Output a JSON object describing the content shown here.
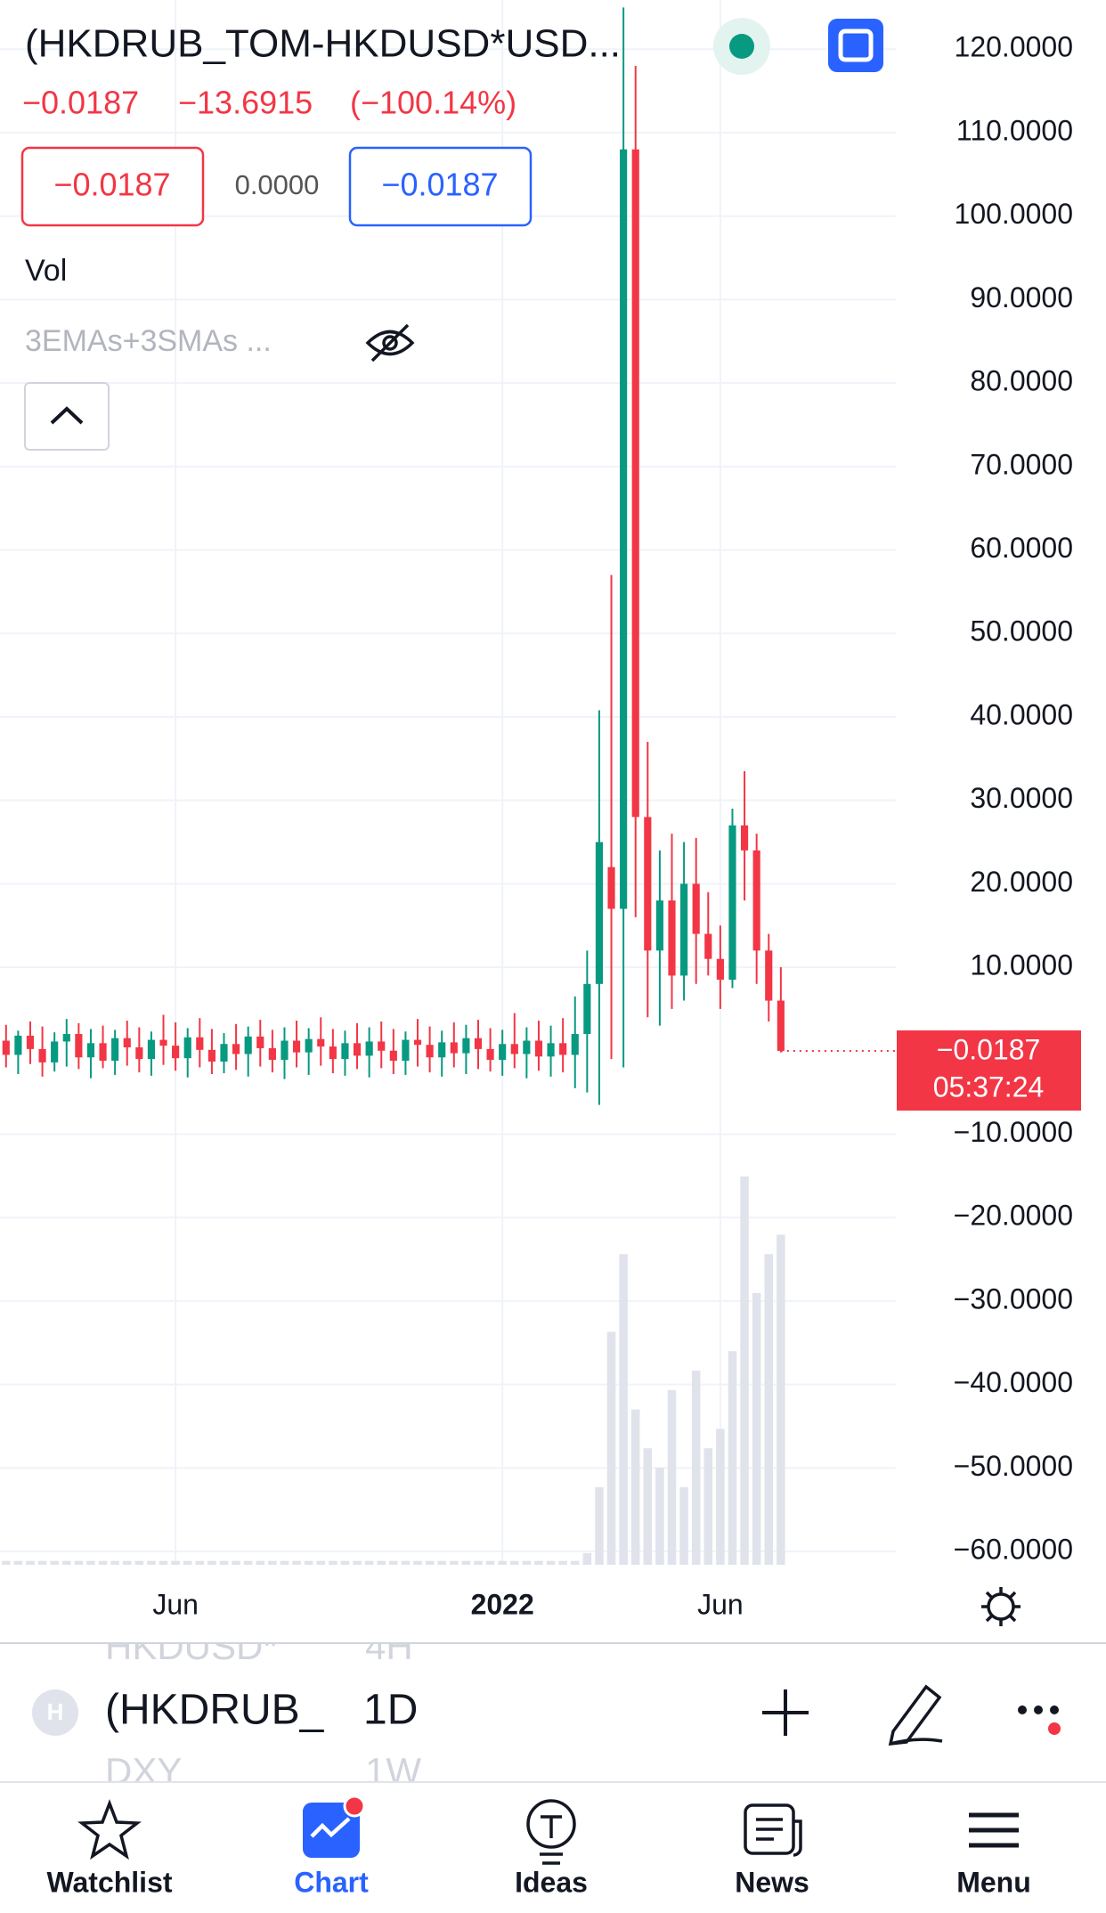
{
  "header": {
    "symbol": "(HKDRUB_TOM-HKDUSD*USD...",
    "last": "−0.0187",
    "change": "−13.6915",
    "change_percent": "(−100.14%)"
  },
  "quote": {
    "bid": "−0.0187",
    "spread": "0.0000",
    "ask": "−0.0187"
  },
  "indicators": [
    "Vol",
    "3EMAs+3SMAs ..."
  ],
  "price_label": {
    "value": "−0.0187",
    "countdown": "05:37:24"
  },
  "chart_data": {
    "type": "candlestick",
    "categories": [
      null,
      null,
      null,
      null,
      null,
      null,
      null,
      null,
      null,
      null,
      null,
      null,
      null,
      null,
      "Jun",
      null,
      null,
      null,
      null,
      null,
      null,
      null,
      null,
      null,
      null,
      null,
      null,
      null,
      null,
      null,
      null,
      null,
      null,
      null,
      null,
      null,
      null,
      null,
      null,
      null,
      null,
      "2022",
      null,
      null,
      null,
      null,
      null,
      null,
      null,
      null,
      null,
      null,
      null,
      null,
      null,
      null,
      null,
      null,
      null,
      "Jun",
      null,
      null,
      null,
      null,
      null,
      null,
      null,
      null,
      null,
      null,
      null,
      null,
      null,
      null
    ],
    "open": [
      1.2,
      -0.5,
      1.8,
      0.2,
      -1.4,
      1.1,
      2.0,
      -0.8,
      0.9,
      -1.2,
      1.5,
      0.4,
      -1.0,
      1.3,
      0.6,
      -0.9,
      1.6,
      0.1,
      -1.3,
      0.8,
      -0.4,
      1.7,
      0.3,
      -1.1,
      1.2,
      -0.2,
      1.4,
      0.5,
      -1.0,
      0.9,
      -0.6,
      1.1,
      0.0,
      -1.2,
      1.3,
      0.7,
      -0.8,
      1.0,
      -0.3,
      1.5,
      0.2,
      -1.1,
      0.8,
      -0.4,
      1.2,
      -0.7,
      0.9,
      -0.5,
      2.0,
      8.0,
      22.0,
      17.0,
      108.0,
      28.0,
      12.0,
      18.0,
      9.0,
      20.0,
      14.0,
      11.0,
      8.5,
      27.0,
      24.0,
      12.0,
      6.0,
      null,
      null,
      null,
      null,
      null,
      null,
      null,
      null,
      null
    ],
    "high": [
      3.1,
      2.4,
      3.5,
      2.9,
      2.2,
      3.8,
      3.3,
      2.6,
      3.0,
      2.5,
      3.6,
      2.8,
      2.3,
      4.3,
      3.4,
      2.7,
      3.9,
      2.6,
      2.1,
      3.2,
      2.9,
      3.7,
      2.5,
      2.8,
      3.6,
      2.7,
      4.0,
      2.6,
      2.4,
      3.3,
      2.8,
      3.5,
      2.6,
      2.3,
      3.8,
      2.9,
      2.4,
      3.4,
      3.1,
      3.7,
      2.7,
      2.5,
      4.5,
      2.8,
      3.6,
      3.0,
      3.9,
      6.5,
      12.0,
      40.8,
      57.0,
      125.0,
      118.0,
      37.0,
      24.0,
      26.0,
      25.0,
      25.5,
      19.0,
      15.0,
      29.0,
      33.5,
      26.0,
      14.0,
      10.0,
      null,
      null,
      null,
      null,
      null,
      null,
      null,
      null,
      null
    ],
    "low": [
      -2.0,
      -2.8,
      -1.6,
      -3.1,
      -2.5,
      -1.9,
      -2.2,
      -3.3,
      -2.1,
      -2.9,
      -1.8,
      -2.6,
      -3.0,
      -1.7,
      -2.4,
      -3.2,
      -2.0,
      -2.8,
      -2.7,
      -2.3,
      -3.1,
      -1.9,
      -2.6,
      -3.4,
      -2.0,
      -2.9,
      -1.8,
      -2.7,
      -3.0,
      -2.2,
      -3.2,
      -2.1,
      -2.8,
      -2.9,
      -1.9,
      -2.6,
      -3.1,
      -2.0,
      -2.8,
      -2.2,
      -2.5,
      -3.0,
      -2.1,
      -3.3,
      -2.4,
      -3.1,
      -2.6,
      -4.5,
      -5.0,
      -6.5,
      -1.0,
      -2.0,
      16.0,
      4.0,
      3.0,
      5.0,
      6.0,
      8.0,
      9.0,
      5.0,
      7.5,
      18.0,
      8.0,
      3.5,
      -0.2,
      null,
      null,
      null,
      null,
      null,
      null,
      null,
      null,
      null
    ],
    "close": [
      -0.5,
      1.8,
      0.2,
      -1.4,
      1.1,
      2.0,
      -0.8,
      0.9,
      -1.2,
      1.5,
      0.4,
      -1.0,
      1.3,
      0.6,
      -0.9,
      1.6,
      0.1,
      -1.3,
      0.8,
      -0.4,
      1.7,
      0.3,
      -1.1,
      1.2,
      -0.2,
      1.4,
      0.5,
      -1.0,
      0.9,
      -0.6,
      1.1,
      0.0,
      -1.2,
      1.3,
      0.7,
      -0.8,
      1.0,
      -0.3,
      1.5,
      0.2,
      -1.1,
      0.8,
      -0.4,
      1.2,
      -0.7,
      0.9,
      -0.5,
      2.0,
      8.0,
      25.0,
      17.0,
      108.0,
      28.0,
      12.0,
      18.0,
      9.0,
      20.0,
      14.0,
      11.0,
      8.5,
      27.0,
      24.0,
      12.0,
      6.0,
      -0.0187,
      null,
      null,
      null,
      null,
      null,
      null,
      null,
      null,
      null
    ],
    "volume": [
      1,
      1,
      1,
      1,
      1,
      1,
      1,
      1,
      1,
      1,
      1,
      1,
      1,
      1,
      1,
      1,
      1,
      1,
      1,
      1,
      1,
      1,
      1,
      1,
      1,
      1,
      1,
      1,
      1,
      1,
      1,
      1,
      1,
      1,
      1,
      1,
      1,
      1,
      1,
      1,
      1,
      1,
      1,
      1,
      1,
      1,
      1,
      1,
      3,
      20,
      60,
      80,
      40,
      30,
      25,
      45,
      20,
      50,
      30,
      35,
      55,
      100,
      70,
      80,
      85,
      null,
      null,
      null,
      null,
      null,
      null,
      null,
      null,
      null
    ],
    "up_color": "#089981",
    "down_color": "#f23645",
    "volume_color": "#e0e3eb",
    "ylim": [
      -61.6,
      125.9
    ],
    "yticks": [
      {
        "value": 120,
        "label": "120.0000"
      },
      {
        "value": 110,
        "label": "110.0000"
      },
      {
        "value": 100,
        "label": "100.0000"
      },
      {
        "value": 90,
        "label": "90.0000"
      },
      {
        "value": 80,
        "label": "80.0000"
      },
      {
        "value": 70,
        "label": "70.0000"
      },
      {
        "value": 60,
        "label": "60.0000"
      },
      {
        "value": 50,
        "label": "50.0000"
      },
      {
        "value": 40,
        "label": "40.0000"
      },
      {
        "value": 30,
        "label": "30.0000"
      },
      {
        "value": 20,
        "label": "20.0000"
      },
      {
        "value": 10,
        "label": "10.0000"
      },
      {
        "value": -10,
        "label": "−10.0000"
      },
      {
        "value": -20,
        "label": "−20.0000"
      },
      {
        "value": -30,
        "label": "−30.0000"
      },
      {
        "value": -40,
        "label": "−40.0000"
      },
      {
        "value": -50,
        "label": "−50.0000"
      },
      {
        "value": -60,
        "label": "−60.0000"
      }
    ],
    "grid": true
  },
  "toolbar": {
    "icon_letter": "H",
    "prev_symbol": "HKDUSD*",
    "prev_interval": "4H",
    "symbol": "(HKDRUB_",
    "interval": "1D",
    "next_symbol": "DXY",
    "next_interval": "1W"
  },
  "tabs": [
    "Watchlist",
    "Chart",
    "Ideas",
    "News",
    "Menu"
  ]
}
